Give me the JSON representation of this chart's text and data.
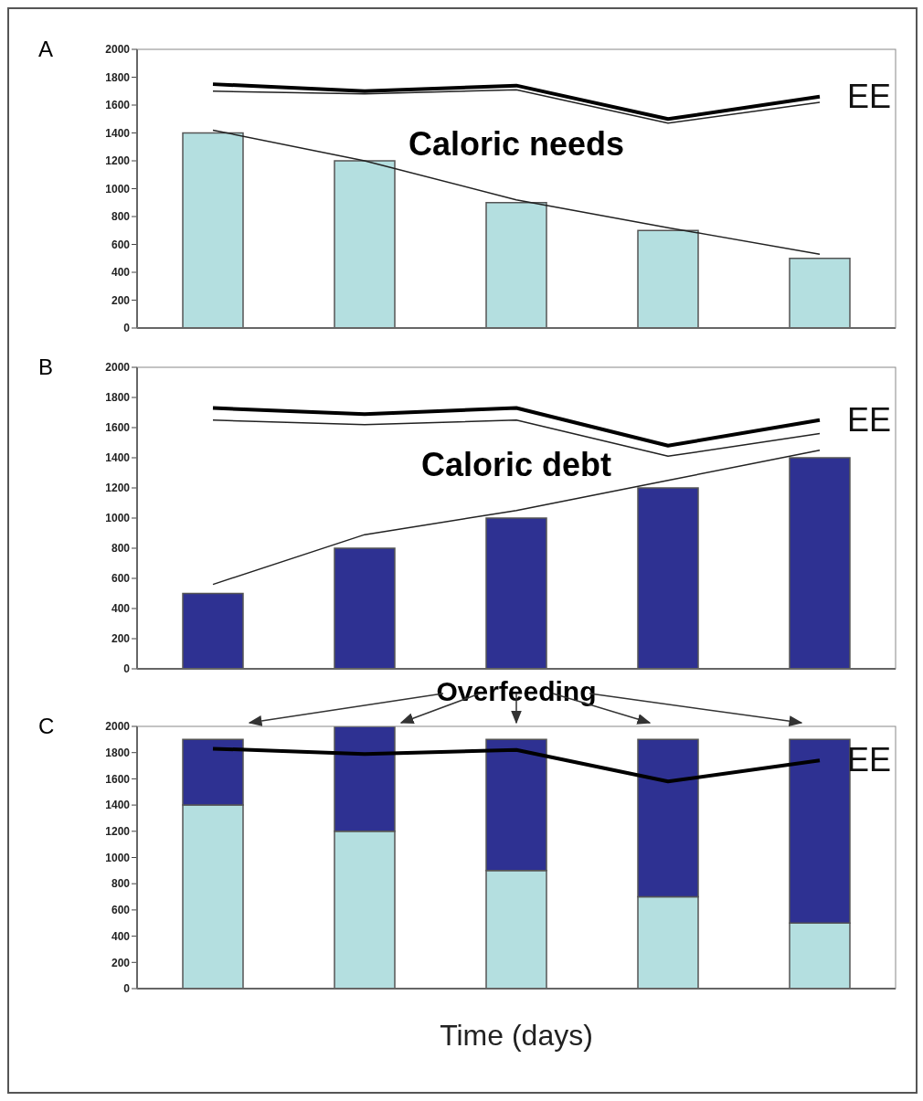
{
  "chart_data": [
    {
      "type": "bar",
      "title": "A",
      "categories": [
        null,
        null,
        null,
        null,
        null
      ],
      "ylim": [
        0,
        2000
      ],
      "yticks": [
        0,
        200,
        400,
        600,
        800,
        1000,
        1200,
        1400,
        1600,
        1800,
        2000
      ],
      "tick_labels": "y",
      "annotations": [
        "Caloric needs"
      ],
      "series": [
        {
          "type": "bar",
          "color": "#b4dfe0",
          "values": [
            1400,
            1200,
            900,
            700,
            500
          ]
        },
        {
          "type": "line",
          "name": "EE",
          "color": "#000000",
          "values": [
            1750,
            1700,
            1740,
            1500,
            1660
          ]
        },
        {
          "type": "line",
          "color": "#222222",
          "values": [
            1700,
            1680,
            1710,
            1470,
            1620
          ]
        },
        {
          "type": "line",
          "color": "#222222",
          "values": [
            1420,
            1200,
            920,
            720,
            530
          ]
        }
      ]
    },
    {
      "type": "bar",
      "title": "B",
      "categories": [
        null,
        null,
        null,
        null,
        null
      ],
      "ylim": [
        0,
        2000
      ],
      "yticks": [
        0,
        200,
        400,
        600,
        800,
        1000,
        1200,
        1400,
        1600,
        1800,
        2000
      ],
      "tick_labels": "y",
      "annotations": [
        "Caloric debt"
      ],
      "series": [
        {
          "type": "bar",
          "color": "#2e3192",
          "values": [
            500,
            800,
            1000,
            1200,
            1400
          ]
        },
        {
          "type": "line",
          "name": "EE",
          "color": "#000000",
          "values": [
            1730,
            1690,
            1730,
            1480,
            1650
          ]
        },
        {
          "type": "line",
          "color": "#222222",
          "values": [
            1650,
            1620,
            1650,
            1410,
            1560
          ]
        },
        {
          "type": "line",
          "color": "#222222",
          "values": [
            560,
            890,
            1050,
            1250,
            1450
          ]
        }
      ]
    },
    {
      "type": "bar",
      "title": "C",
      "xlabel": "Time (days)",
      "stacked": true,
      "categories": [
        null,
        null,
        null,
        null,
        null
      ],
      "ylim": [
        0,
        2000
      ],
      "yticks": [
        0,
        200,
        400,
        600,
        800,
        1000,
        1200,
        1400,
        1600,
        1800,
        2000
      ],
      "tick_labels": "y",
      "annotations": [
        "Overfeeding"
      ],
      "series": [
        {
          "type": "bar",
          "color": "#b4dfe0",
          "values": [
            1400,
            1200,
            900,
            700,
            500
          ]
        },
        {
          "type": "bar",
          "color": "#2e3192",
          "values": [
            500,
            800,
            1000,
            1200,
            1400
          ]
        },
        {
          "type": "line",
          "name": "EE",
          "color": "#000000",
          "values": [
            1830,
            1790,
            1820,
            1580,
            1740
          ]
        }
      ]
    }
  ]
}
